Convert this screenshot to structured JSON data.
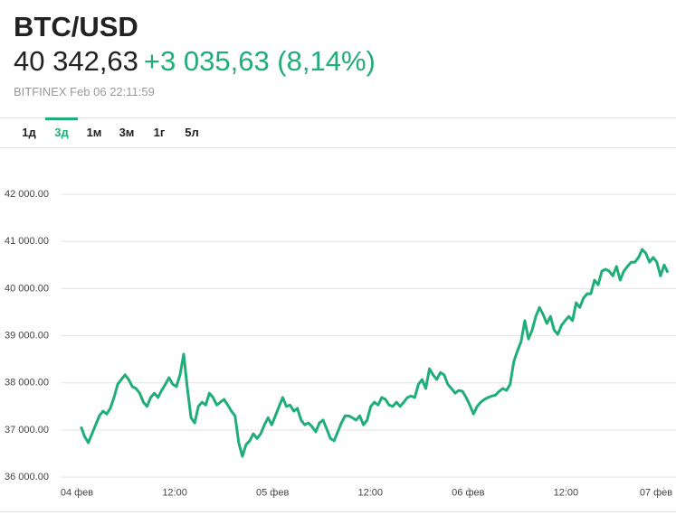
{
  "header": {
    "title": "BTC/USD",
    "price": "40 342,63",
    "change": "+3 035,63 (8,14%)",
    "source": "BITFINEX Feb 06 22:11:59"
  },
  "tabs": {
    "items": [
      "1д",
      "3д",
      "1м",
      "3м",
      "1г",
      "5л"
    ],
    "active": 1
  },
  "chart_data": {
    "type": "line",
    "color": "#1fae78",
    "grid": true,
    "xlim": [
      -2,
      73.5
    ],
    "xticks": [
      {
        "value": 0,
        "label": "04 фев"
      },
      {
        "value": 12,
        "label": "12:00"
      },
      {
        "value": 24,
        "label": "05 фев"
      },
      {
        "value": 36,
        "label": "12:00"
      },
      {
        "value": 48,
        "label": "06 фев"
      },
      {
        "value": 60,
        "label": "12:00"
      },
      {
        "value": 72,
        "label": "07 фев"
      }
    ],
    "ylim": [
      35800,
      42500
    ],
    "yticks": [
      {
        "value": 36000,
        "label": "36 000.00"
      },
      {
        "value": 37000,
        "label": "37 000.00"
      },
      {
        "value": 38000,
        "label": "38 000.00"
      },
      {
        "value": 39000,
        "label": "39 000.00"
      },
      {
        "value": 40000,
        "label": "40 000.00"
      },
      {
        "value": 41000,
        "label": "41 000.00"
      },
      {
        "value": 42000,
        "label": "42 000.00"
      }
    ],
    "x": [
      0.5,
      0.95,
      1.4,
      1.85,
      2.3,
      2.75,
      3.2,
      3.65,
      4.1,
      4.55,
      5,
      5.45,
      5.9,
      6.35,
      6.8,
      7.25,
      7.7,
      8.15,
      8.6,
      9.05,
      9.5,
      9.95,
      10.4,
      10.85,
      11.3,
      11.75,
      12.2,
      12.65,
      13.1,
      13.55,
      14,
      14.45,
      14.9,
      15.35,
      15.8,
      16.25,
      16.7,
      17.15,
      17.6,
      18.05,
      18.5,
      18.95,
      19.4,
      19.85,
      20.3,
      20.75,
      21.2,
      21.65,
      22.1,
      22.55,
      23,
      23.45,
      23.9,
      24.35,
      24.8,
      25.25,
      25.7,
      26.15,
      26.6,
      27.05,
      27.5,
      27.95,
      28.4,
      28.85,
      29.3,
      29.75,
      30.2,
      30.65,
      31.1,
      31.55,
      32,
      32.45,
      32.9,
      33.35,
      33.8,
      34.25,
      34.7,
      35.15,
      35.6,
      36.05,
      36.5,
      36.95,
      37.4,
      37.85,
      38.3,
      38.75,
      39.2,
      39.65,
      40.1,
      40.55,
      41,
      41.45,
      41.9,
      42.35,
      42.8,
      43.25,
      43.7,
      44.15,
      44.6,
      45.05,
      45.5,
      45.95,
      46.4,
      46.85,
      47.3,
      47.75,
      48.2,
      48.65,
      49.1,
      49.55,
      50,
      50.45,
      50.9,
      51.35,
      51.8,
      52.25,
      52.7,
      53.15,
      53.6,
      54.05,
      54.5,
      54.95,
      55.4,
      55.85,
      56.3,
      56.75,
      57.2,
      57.65,
      58.1,
      58.55,
      59,
      59.45,
      59.9,
      60.35,
      60.8,
      61.25,
      61.7,
      62.15,
      62.6,
      63.05,
      63.5,
      63.95,
      64.4,
      64.85,
      65.3,
      65.75,
      66.2,
      66.65,
      67.1,
      67.55,
      68,
      68.45,
      68.9,
      69.35,
      69.8,
      70.25,
      70.7,
      71.15,
      71.6,
      72.05,
      72.5
    ],
    "values": [
      37070,
      36860,
      36730,
      36920,
      37110,
      37300,
      37400,
      37340,
      37460,
      37690,
      37970,
      38070,
      38170,
      38070,
      37920,
      37880,
      37780,
      37590,
      37500,
      37690,
      37780,
      37690,
      37840,
      37970,
      38110,
      37970,
      37920,
      38170,
      38610,
      37880,
      37260,
      37150,
      37500,
      37590,
      37530,
      37780,
      37690,
      37530,
      37590,
      37650,
      37530,
      37400,
      37300,
      36730,
      36440,
      36690,
      36770,
      36920,
      36820,
      36920,
      37110,
      37260,
      37110,
      37300,
      37500,
      37690,
      37500,
      37530,
      37400,
      37460,
      37210,
      37110,
      37150,
      37070,
      36960,
      37150,
      37210,
      37020,
      36820,
      36770,
      36960,
      37150,
      37300,
      37300,
      37260,
      37210,
      37300,
      37110,
      37210,
      37500,
      37590,
      37530,
      37690,
      37650,
      37530,
      37500,
      37590,
      37500,
      37590,
      37690,
      37720,
      37690,
      37970,
      38070,
      37880,
      38300,
      38170,
      38070,
      38220,
      38170,
      37970,
      37880,
      37780,
      37840,
      37820,
      37690,
      37530,
      37340,
      37500,
      37590,
      37650,
      37690,
      37720,
      37740,
      37820,
      37880,
      37840,
      37970,
      38450,
      38680,
      38880,
      39320,
      38930,
      39120,
      39410,
      39600,
      39450,
      39260,
      39410,
      39120,
      39030,
      39220,
      39320,
      39410,
      39320,
      39700,
      39600,
      39800,
      39890,
      39890,
      40180,
      40080,
      40370,
      40410,
      40370,
      40270,
      40470,
      40180,
      40370,
      40470,
      40560,
      40560,
      40660,
      40830,
      40750,
      40560,
      40660,
      40560,
      40270,
      40500,
      40340
    ]
  }
}
